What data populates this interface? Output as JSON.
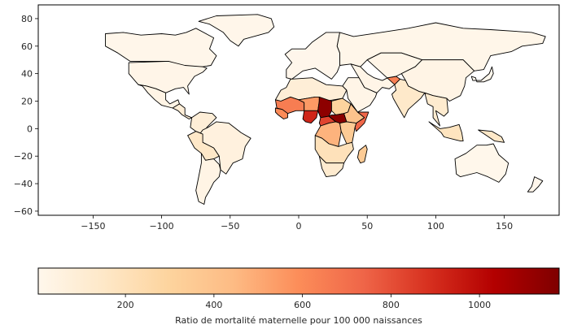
{
  "map": {
    "type": "choropleth",
    "projection": "equirectangular",
    "xlim": [
      -190,
      190
    ],
    "ylim": [
      -63,
      90
    ],
    "x_ticks": [
      "−150",
      "−100",
      "−50",
      "0",
      "50",
      "100",
      "150"
    ],
    "x_tick_values": [
      -150,
      -100,
      -50,
      0,
      50,
      100,
      150
    ],
    "y_ticks": [
      "80",
      "60",
      "40",
      "20",
      "0",
      "−20",
      "−40",
      "−60"
    ],
    "y_tick_values": [
      80,
      60,
      40,
      20,
      0,
      -20,
      -40,
      -60
    ],
    "regions": [
      {
        "name": "Canada",
        "value": 10
      },
      {
        "name": "Greenland",
        "value": 10
      },
      {
        "name": "United States",
        "value": 19
      },
      {
        "name": "Mexico",
        "value": 33
      },
      {
        "name": "Central America",
        "value": 90
      },
      {
        "name": "Colombia / Venezuela",
        "value": 90
      },
      {
        "name": "Brazil",
        "value": 60
      },
      {
        "name": "Peru / Bolivia",
        "value": 150
      },
      {
        "name": "Argentina / Chile",
        "value": 30
      },
      {
        "name": "Europe",
        "value": 8
      },
      {
        "name": "Russia",
        "value": 17
      },
      {
        "name": "North Africa",
        "value": 90
      },
      {
        "name": "Mauritania / Mali",
        "value": 650
      },
      {
        "name": "Niger",
        "value": 550
      },
      {
        "name": "Chad",
        "value": 1140
      },
      {
        "name": "Central African Republic",
        "value": 830
      },
      {
        "name": "Nigeria",
        "value": 920
      },
      {
        "name": "Senegal / Guinea",
        "value": 600
      },
      {
        "name": "Sudan",
        "value": 300
      },
      {
        "name": "South Sudan",
        "value": 1150
      },
      {
        "name": "Ethiopia",
        "value": 400
      },
      {
        "name": "Somalia",
        "value": 730
      },
      {
        "name": "DR Congo",
        "value": 470
      },
      {
        "name": "East Africa",
        "value": 350
      },
      {
        "name": "Southern Africa",
        "value": 200
      },
      {
        "name": "South Africa",
        "value": 120
      },
      {
        "name": "Madagascar",
        "value": 350
      },
      {
        "name": "Middle East",
        "value": 25
      },
      {
        "name": "Afghanistan",
        "value": 640
      },
      {
        "name": "India",
        "value": 140
      },
      {
        "name": "Central Asia",
        "value": 25
      },
      {
        "name": "China",
        "value": 30
      },
      {
        "name": "Southeast Asia",
        "value": 120
      },
      {
        "name": "Indonesia",
        "value": 180
      },
      {
        "name": "Papua New Guinea",
        "value": 150
      },
      {
        "name": "Japan / Korea",
        "value": 5
      },
      {
        "name": "Australia",
        "value": 6
      },
      {
        "name": "New Zealand",
        "value": 9
      }
    ]
  },
  "colorbar": {
    "colormap": "OrRd",
    "vmin": 3,
    "vmax": 1180,
    "ticks": [
      "200",
      "400",
      "600",
      "800",
      "1000"
    ],
    "tick_values": [
      200,
      400,
      600,
      800,
      1000
    ],
    "label": "Ratio de mortalité maternelle pour 100 000 naissances",
    "stops": [
      "#fff7ec",
      "#fee8c8",
      "#fdd49e",
      "#fdbb84",
      "#fc8d59",
      "#ef6548",
      "#d7301f",
      "#b30000",
      "#7f0000"
    ]
  }
}
